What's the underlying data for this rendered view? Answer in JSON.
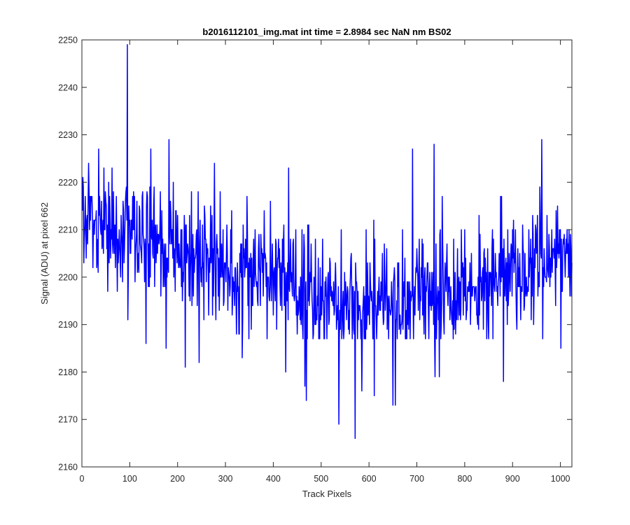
{
  "chart_data": {
    "type": "line",
    "title": "b2016112101_img.mat int time = 2.8984 sec  NaN nm BS02",
    "xlabel": "Track Pixels",
    "ylabel": "Signal (ADU) at pixel 662",
    "xlim": [
      0,
      1024
    ],
    "ylim": [
      2160,
      2250
    ],
    "xticks": [
      "0",
      "100",
      "200",
      "300",
      "400",
      "500",
      "600",
      "700",
      "800",
      "900",
      "1000"
    ],
    "yticks": [
      "2160",
      "2170",
      "2180",
      "2190",
      "2200",
      "2210",
      "2220",
      "2230",
      "2240",
      "2250"
    ],
    "grid": false,
    "legend": "none",
    "series": [
      {
        "color": "#0000ff",
        "x_start": 1,
        "x_step": 1,
        "trend_x": [
          0,
          50,
          100,
          200,
          300,
          400,
          450,
          500,
          550,
          600,
          650,
          700,
          800,
          900,
          950,
          1024
        ],
        "trend_y": [
          2211,
          2210,
          2209,
          2206,
          2203,
          2201,
          2198,
          2196,
          2194.5,
          2194.5,
          2195,
          2196,
          2198,
          2201,
          2203,
          2205
        ],
        "noise_std": 6.3,
        "spikes": [
          {
            "x": 95,
            "y": 2249
          },
          {
            "x": 134,
            "y": 2186
          },
          {
            "x": 176,
            "y": 2185
          },
          {
            "x": 182,
            "y": 2229
          },
          {
            "x": 216,
            "y": 2181
          },
          {
            "x": 245,
            "y": 2182
          },
          {
            "x": 335,
            "y": 2183
          },
          {
            "x": 426,
            "y": 2180
          },
          {
            "x": 466,
            "y": 2177
          },
          {
            "x": 469,
            "y": 2174
          },
          {
            "x": 537,
            "y": 2169
          },
          {
            "x": 571,
            "y": 2166
          },
          {
            "x": 585,
            "y": 2176
          },
          {
            "x": 611,
            "y": 2175
          },
          {
            "x": 650,
            "y": 2173
          },
          {
            "x": 655,
            "y": 2173
          },
          {
            "x": 691,
            "y": 2227
          },
          {
            "x": 738,
            "y": 2179
          },
          {
            "x": 747,
            "y": 2179
          },
          {
            "x": 736,
            "y": 2228
          },
          {
            "x": 881,
            "y": 2178
          },
          {
            "x": 961,
            "y": 2229
          },
          {
            "x": 1001,
            "y": 2185
          }
        ]
      }
    ]
  }
}
